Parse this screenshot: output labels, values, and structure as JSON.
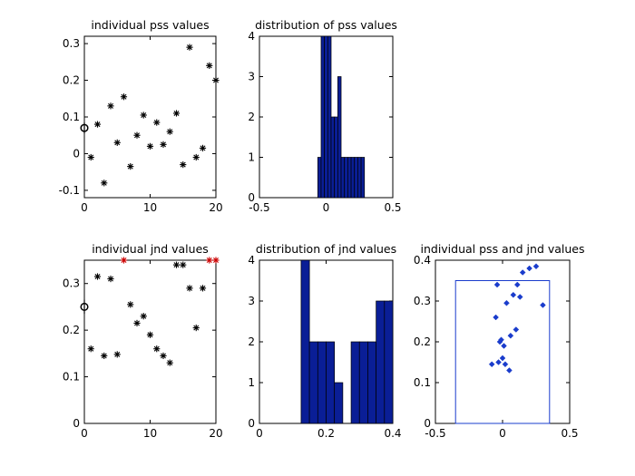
{
  "chart_data": [
    {
      "id": "pss-scatter",
      "type": "scatter",
      "title": "individual pss values",
      "xlim": [
        0,
        20
      ],
      "ylim": [
        -0.12,
        0.32
      ],
      "xticks": [
        0,
        10,
        20
      ],
      "xtick_labels": [
        "0",
        "10",
        "20"
      ],
      "yticks": [
        -0.1,
        0,
        0.1,
        0.2,
        0.3
      ],
      "ytick_labels": [
        "-0.1",
        "0",
        "0.1",
        "0.2",
        "0.3"
      ],
      "marker_color": "#000000",
      "points": [
        {
          "x": 1,
          "y": -0.01
        },
        {
          "x": 2,
          "y": 0.08
        },
        {
          "x": 3,
          "y": -0.08
        },
        {
          "x": 4,
          "y": 0.13
        },
        {
          "x": 5,
          "y": 0.03
        },
        {
          "x": 6,
          "y": 0.155
        },
        {
          "x": 7,
          "y": -0.035
        },
        {
          "x": 8,
          "y": 0.05
        },
        {
          "x": 9,
          "y": 0.105
        },
        {
          "x": 10,
          "y": 0.02
        },
        {
          "x": 11,
          "y": 0.085
        },
        {
          "x": 12,
          "y": 0.025
        },
        {
          "x": 13,
          "y": 0.06
        },
        {
          "x": 14,
          "y": 0.11
        },
        {
          "x": 15,
          "y": -0.03
        },
        {
          "x": 16,
          "y": 0.29
        },
        {
          "x": 17,
          "y": -0.01
        },
        {
          "x": 18,
          "y": 0.015
        },
        {
          "x": 19,
          "y": 0.24
        },
        {
          "x": 20,
          "y": 0.2
        }
      ],
      "mean": {
        "x": 0,
        "y": 0.07,
        "errorbar": 0.015
      }
    },
    {
      "id": "pss-hist",
      "type": "bar",
      "title": "distribution of pss values",
      "xlim": [
        -0.5,
        0.5
      ],
      "ylim": [
        0,
        4
      ],
      "xticks": [
        -0.5,
        0,
        0.5
      ],
      "xtick_labels": [
        "-0.5",
        "0",
        "0.5"
      ],
      "yticks": [
        0,
        1,
        2,
        3,
        4
      ],
      "ytick_labels": [
        "0",
        "1",
        "2",
        "3",
        "4"
      ],
      "bar_color": "#0a1e96",
      "bin_width": 0.025,
      "bins": [
        {
          "x": -0.05,
          "count": 1
        },
        {
          "x": -0.025,
          "count": 4
        },
        {
          "x": 0.0,
          "count": 4
        },
        {
          "x": 0.025,
          "count": 4
        },
        {
          "x": 0.05,
          "count": 2
        },
        {
          "x": 0.075,
          "count": 2
        },
        {
          "x": 0.1,
          "count": 3
        },
        {
          "x": 0.125,
          "count": 1
        },
        {
          "x": 0.15,
          "count": 1
        },
        {
          "x": 0.175,
          "count": 1
        },
        {
          "x": 0.2,
          "count": 1
        },
        {
          "x": 0.225,
          "count": 1
        },
        {
          "x": 0.25,
          "count": 1
        },
        {
          "x": 0.275,
          "count": 1
        }
      ]
    },
    {
      "id": "jnd-scatter",
      "type": "scatter",
      "title": "individual jnd values",
      "xlim": [
        0,
        20
      ],
      "ylim": [
        0,
        0.35
      ],
      "xticks": [
        0,
        10,
        20
      ],
      "xtick_labels": [
        "0",
        "10",
        "20"
      ],
      "yticks": [
        0,
        0.1,
        0.2,
        0.3
      ],
      "ytick_labels": [
        "0",
        "0.1",
        "0.2",
        "0.3"
      ],
      "marker_color": "#000000",
      "outlier_color": "#cc0000",
      "points": [
        {
          "x": 1,
          "y": 0.16
        },
        {
          "x": 2,
          "y": 0.315
        },
        {
          "x": 3,
          "y": 0.145
        },
        {
          "x": 4,
          "y": 0.31
        },
        {
          "x": 5,
          "y": 0.148
        },
        {
          "x": 7,
          "y": 0.255
        },
        {
          "x": 8,
          "y": 0.215
        },
        {
          "x": 9,
          "y": 0.23
        },
        {
          "x": 10,
          "y": 0.19
        },
        {
          "x": 11,
          "y": 0.16
        },
        {
          "x": 12,
          "y": 0.145
        },
        {
          "x": 13,
          "y": 0.13
        },
        {
          "x": 14,
          "y": 0.34
        },
        {
          "x": 15,
          "y": 0.34
        },
        {
          "x": 16,
          "y": 0.29
        },
        {
          "x": 17,
          "y": 0.205
        },
        {
          "x": 18,
          "y": 0.29
        }
      ],
      "outliers": [
        {
          "x": 6,
          "y": 0.35
        },
        {
          "x": 19,
          "y": 0.35
        },
        {
          "x": 20,
          "y": 0.35
        }
      ],
      "mean": {
        "x": 0,
        "y": 0.25,
        "errorbar": 0.015
      }
    },
    {
      "id": "jnd-hist",
      "type": "bar",
      "title": "distribution of jnd values",
      "xlim": [
        0,
        0.4
      ],
      "ylim": [
        0,
        4
      ],
      "xticks": [
        0,
        0.2,
        0.4
      ],
      "xtick_labels": [
        "0",
        "0.2",
        "0.4"
      ],
      "yticks": [
        0,
        1,
        2,
        3,
        4
      ],
      "ytick_labels": [
        "0",
        "1",
        "2",
        "3",
        "4"
      ],
      "bar_color": "#0a1e96",
      "bin_width": 0.025,
      "bins": [
        {
          "x": 0.1375,
          "count": 4
        },
        {
          "x": 0.1625,
          "count": 2
        },
        {
          "x": 0.1875,
          "count": 2
        },
        {
          "x": 0.2125,
          "count": 2
        },
        {
          "x": 0.2375,
          "count": 1
        },
        {
          "x": 0.2875,
          "count": 2
        },
        {
          "x": 0.3125,
          "count": 2
        },
        {
          "x": 0.3375,
          "count": 2
        },
        {
          "x": 0.3625,
          "count": 3
        },
        {
          "x": 0.3875,
          "count": 3
        }
      ]
    },
    {
      "id": "pss-jnd-scatter",
      "type": "scatter",
      "title": "individual pss and jnd values",
      "xlim": [
        -0.5,
        0.5
      ],
      "ylim": [
        0,
        0.4
      ],
      "xticks": [
        -0.5,
        0,
        0.5
      ],
      "xtick_labels": [
        "-0.5",
        "0",
        "0.5"
      ],
      "yticks": [
        0,
        0.1,
        0.2,
        0.3,
        0.4
      ],
      "ytick_labels": [
        "0",
        "0.1",
        "0.2",
        "0.3",
        "0.4"
      ],
      "marker_color": "#1a3ccc",
      "window": {
        "x0": -0.35,
        "x1": 0.35,
        "y1": 0.35
      },
      "points": [
        {
          "x": -0.08,
          "y": 0.145
        },
        {
          "x": -0.04,
          "y": 0.34
        },
        {
          "x": -0.03,
          "y": 0.15
        },
        {
          "x": -0.05,
          "y": 0.26
        },
        {
          "x": -0.02,
          "y": 0.2
        },
        {
          "x": -0.01,
          "y": 0.205
        },
        {
          "x": 0.0,
          "y": 0.16
        },
        {
          "x": 0.01,
          "y": 0.19
        },
        {
          "x": 0.02,
          "y": 0.145
        },
        {
          "x": 0.03,
          "y": 0.295
        },
        {
          "x": 0.05,
          "y": 0.13
        },
        {
          "x": 0.06,
          "y": 0.215
        },
        {
          "x": 0.08,
          "y": 0.315
        },
        {
          "x": 0.1,
          "y": 0.23
        },
        {
          "x": 0.11,
          "y": 0.34
        },
        {
          "x": 0.13,
          "y": 0.31
        },
        {
          "x": 0.15,
          "y": 0.37
        },
        {
          "x": 0.2,
          "y": 0.38
        },
        {
          "x": 0.25,
          "y": 0.385
        },
        {
          "x": 0.3,
          "y": 0.29
        }
      ]
    }
  ]
}
